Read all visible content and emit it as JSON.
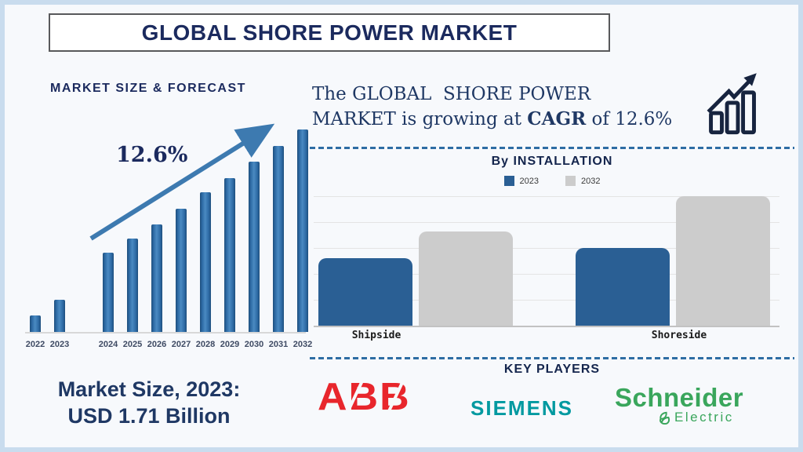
{
  "title": "GLOBAL SHORE POWER MARKET",
  "left_panel": {
    "heading": "MARKET SIZE & FORECAST",
    "cagr_label": "12.6%",
    "market_size_line1": "Market Size, 2023:",
    "market_size_line2": "USD 1.71 Billion"
  },
  "right_panel": {
    "growth_line1": "The GLOBAL  SHORE POWER",
    "growth_line2_before": "MARKET is growing at ",
    "growth_line2_bold": "CAGR",
    "growth_line2_after": " of 12.6%",
    "installation_heading": "By INSTALLATION",
    "key_players_heading": "KEY PLAYERS",
    "key_players": [
      {
        "name": "ABB",
        "logo_text": "ABB",
        "color": "#e8262c"
      },
      {
        "name": "Siemens",
        "logo_text": "SIEMENS",
        "color": "#0099a0"
      },
      {
        "name": "Schneider Electric",
        "logo_line1": "Schneider",
        "logo_line2": "Electric",
        "color": "#3aa65c"
      }
    ]
  },
  "colors": {
    "navy_text": "#1b2a5e",
    "forecast_bar_blue": "#2d6aa4",
    "trend_arrow_blue": "#3d7ab0",
    "dashed_separator_blue": "#2e6da4",
    "frame_border": "#c9dcee",
    "title_box_border": "#58595b"
  },
  "chart_data": [
    {
      "type": "bar",
      "title": "MARKET SIZE & FORECAST",
      "x": [
        "2022",
        "2023",
        "2024",
        "2025",
        "2026",
        "2027",
        "2028",
        "2029",
        "2030",
        "2031",
        "2032"
      ],
      "values": [
        8,
        16,
        39,
        46,
        53,
        61,
        69,
        76,
        84,
        92,
        100
      ],
      "units": "relative bar height, % of 2032 bar (no numeric axis shown)",
      "annotation": "12.6%",
      "annotation_meaning": "CAGR shown beside upward trend arrow",
      "layout_note": "visual gap between 2023 and 2024 bars; no y-axis; x-axis line only",
      "ylim": [
        0,
        100
      ]
    },
    {
      "type": "bar",
      "title": "By INSTALLATION",
      "categories": [
        "Shipside",
        "Shoreside"
      ],
      "series": [
        {
          "name": "2023",
          "color": "#2a5f94",
          "values": [
            52,
            60
          ]
        },
        {
          "name": "2032",
          "color": "#cccccc",
          "values": [
            73,
            100
          ]
        }
      ],
      "units": "relative bar height, % of top gridline (no numeric axis shown)",
      "legend_position": "top",
      "grid": true,
      "ylim": [
        0,
        100
      ]
    }
  ]
}
